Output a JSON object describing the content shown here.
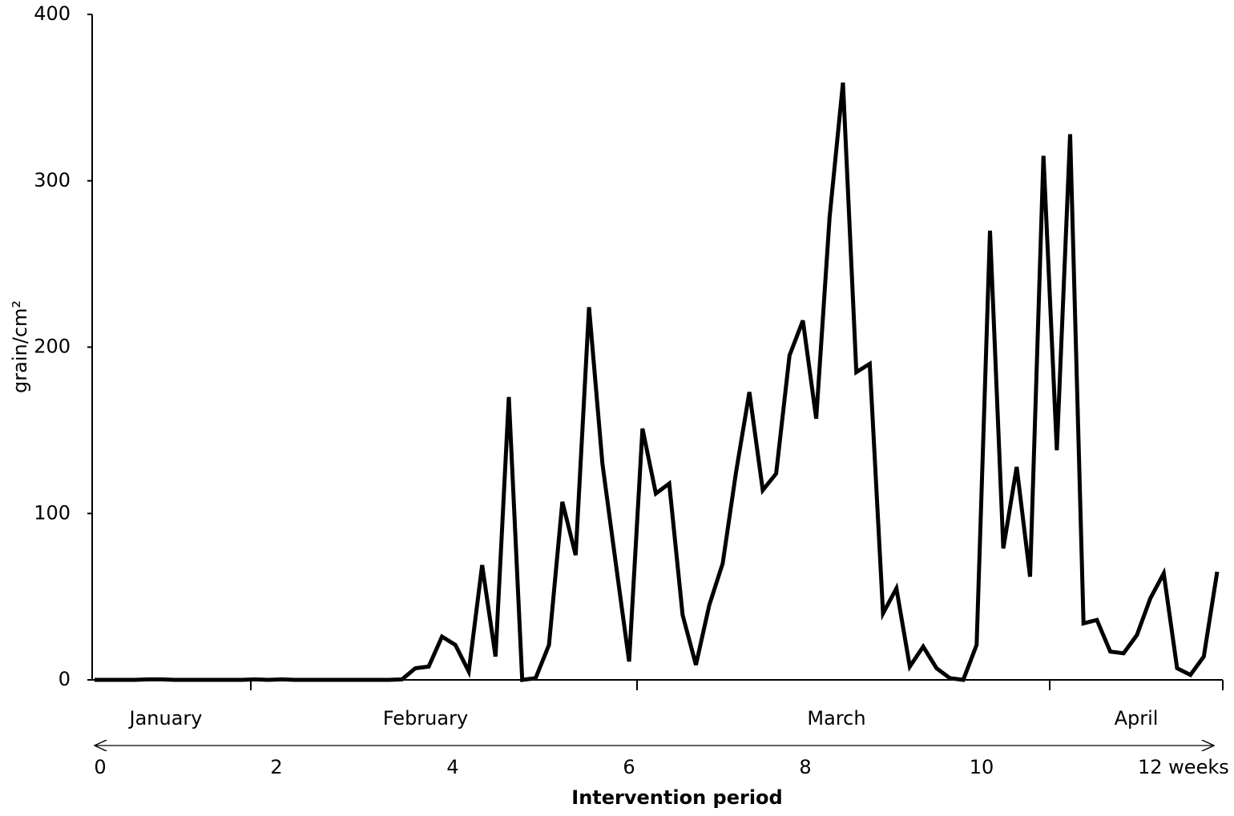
{
  "chart_data": {
    "type": "line",
    "y_label": "grain/cm²",
    "x_label": "Intervention period",
    "months": [
      "January",
      "February",
      "March",
      "April"
    ],
    "color": "#000000",
    "values": [
      0,
      0,
      0,
      0,
      0.3,
      0.3,
      0,
      0,
      0,
      0,
      0,
      0,
      0.3,
      0,
      0.3,
      0,
      0,
      0,
      0,
      0,
      0,
      0,
      0,
      0.3,
      7,
      8,
      26,
      21,
      5,
      69,
      14,
      170,
      0,
      1,
      21,
      107,
      75,
      224,
      130,
      70,
      11,
      151,
      112,
      118,
      39,
      9,
      45,
      70,
      125,
      173,
      114,
      124,
      195,
      216,
      157,
      278,
      359,
      185,
      190,
      40,
      55,
      8,
      20,
      7,
      1,
      0,
      21,
      270,
      79,
      128,
      62,
      315,
      138,
      328,
      34,
      36,
      17,
      16,
      27,
      49,
      64,
      7,
      3,
      14,
      65
    ],
    "ylim": [
      0,
      400
    ],
    "yticks": [
      0,
      100,
      200,
      300,
      400
    ],
    "xlim": [
      0,
      12.7
    ],
    "xticks": [
      0,
      2,
      4,
      6,
      8,
      10,
      {
        "value": 12,
        "label": "12 weeks"
      }
    ],
    "grid": false
  }
}
